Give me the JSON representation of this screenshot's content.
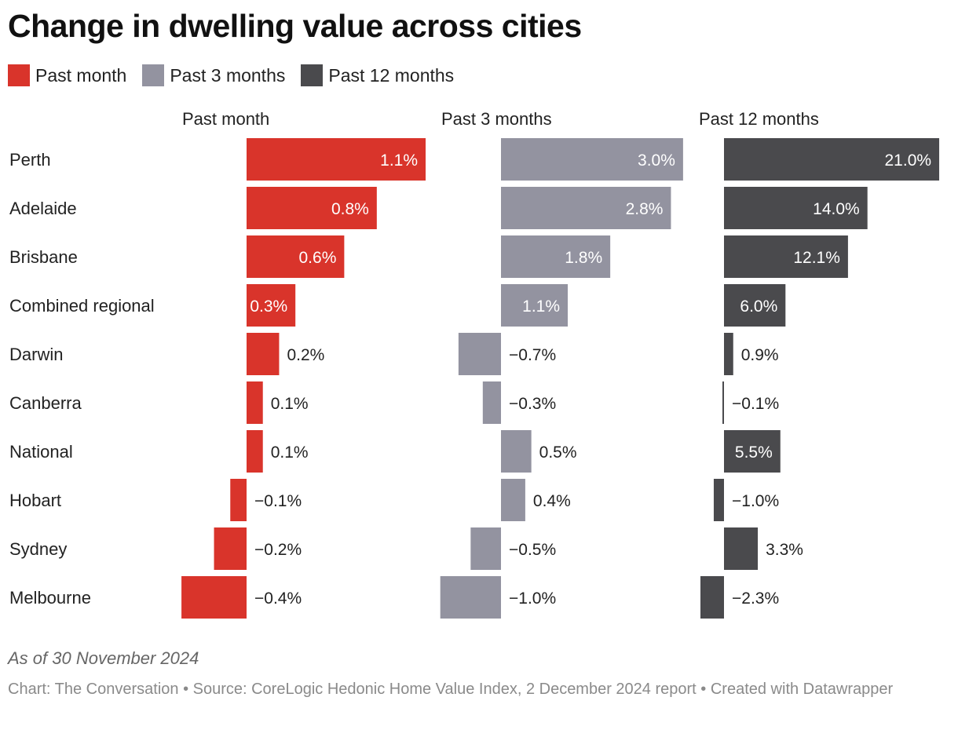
{
  "title": "Change in dwelling value across cities",
  "legend": [
    {
      "label": "Past month",
      "color": "#d9342b"
    },
    {
      "label": "Past 3 months",
      "color": "#9393a0"
    },
    {
      "label": "Past 12 months",
      "color": "#4a4a4d"
    }
  ],
  "note": "As of 30 November 2024",
  "source": "Chart: The Conversation • Source: CoreLogic Hedonic Home Value Index, 2 December 2024 report • Created with Datawrapper",
  "chart_data": {
    "type": "bar",
    "orientation": "horizontal",
    "title": "Change in dwelling value across cities",
    "categories": [
      "Perth",
      "Adelaide",
      "Brisbane",
      "Combined regional",
      "Darwin",
      "Canberra",
      "National",
      "Hobart",
      "Sydney",
      "Melbourne"
    ],
    "series": [
      {
        "name": "Past month",
        "color": "#d9342b",
        "values": [
          1.1,
          0.8,
          0.6,
          0.3,
          0.2,
          0.1,
          0.1,
          -0.1,
          -0.2,
          -0.4
        ],
        "labels": [
          "1.1%",
          "0.8%",
          "0.6%",
          "0.3%",
          "0.2%",
          "0.1%",
          "0.1%",
          "−0.1%",
          "−0.2%",
          "−0.4%"
        ]
      },
      {
        "name": "Past 3 months",
        "color": "#9393a0",
        "values": [
          3.0,
          2.8,
          1.8,
          1.1,
          -0.7,
          -0.3,
          0.5,
          0.4,
          -0.5,
          -1.0
        ],
        "labels": [
          "3.0%",
          "2.8%",
          "1.8%",
          "1.1%",
          "−0.7%",
          "−0.3%",
          "0.5%",
          "0.4%",
          "−0.5%",
          "−1.0%"
        ]
      },
      {
        "name": "Past 12 months",
        "color": "#4a4a4d",
        "values": [
          21.0,
          14.0,
          12.1,
          6.0,
          0.9,
          -0.1,
          5.5,
          -1.0,
          3.3,
          -2.3
        ],
        "labels": [
          "21.0%",
          "14.0%",
          "12.1%",
          "6.0%",
          "0.9%",
          "−0.1%",
          "5.5%",
          "−1.0%",
          "3.3%",
          "−2.3%"
        ]
      }
    ]
  }
}
